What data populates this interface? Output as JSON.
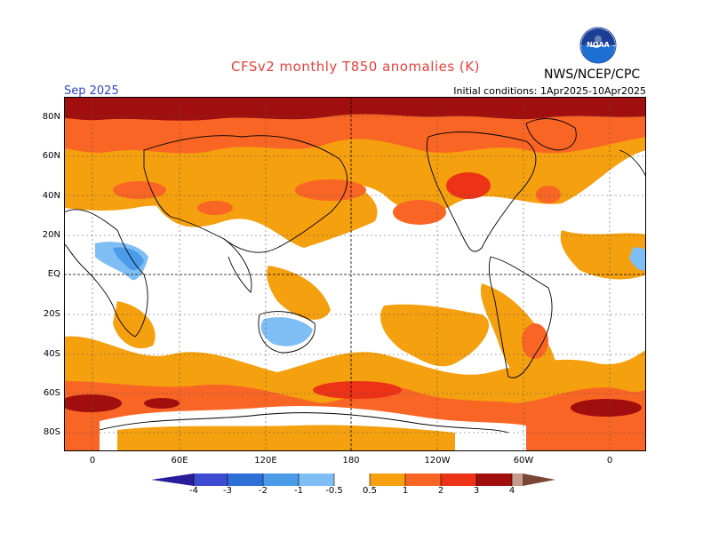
{
  "header": {
    "title": "CFSv2 monthly T850 anomalies (K)",
    "agency": "NWS/NCEP/CPC",
    "month": "Sep 2025",
    "init_conditions": "Initial conditions: 1Apr2025-10Apr2025",
    "logo_icon": "noaa-logo-icon",
    "logo_text": "NOAA"
  },
  "map": {
    "lat_labels": [
      "80N",
      "60N",
      "40N",
      "20N",
      "EQ",
      "20S",
      "40S",
      "60S",
      "80S"
    ],
    "lon_labels": [
      "0",
      "60E",
      "120E",
      "180",
      "120W",
      "60W",
      "0"
    ],
    "colors": {
      "neg4": "#2a1c9a",
      "neg3": "#3d4ad2",
      "neg2": "#2e6fd6",
      "neg1": "#4a9be8",
      "neg05": "#7fbef4",
      "pos05": "#f5a00e",
      "pos1": "#f96524",
      "pos2": "#ec3318",
      "pos3": "#a00f0e",
      "pos4": "#c79b8f",
      "pos5": "#7a4636",
      "neutral": "#ffffff"
    }
  },
  "legend": {
    "labels": [
      "-4",
      "-3",
      "-2",
      "-1",
      "-0.5",
      "0.5",
      "1",
      "2",
      "3",
      "4"
    ]
  }
}
